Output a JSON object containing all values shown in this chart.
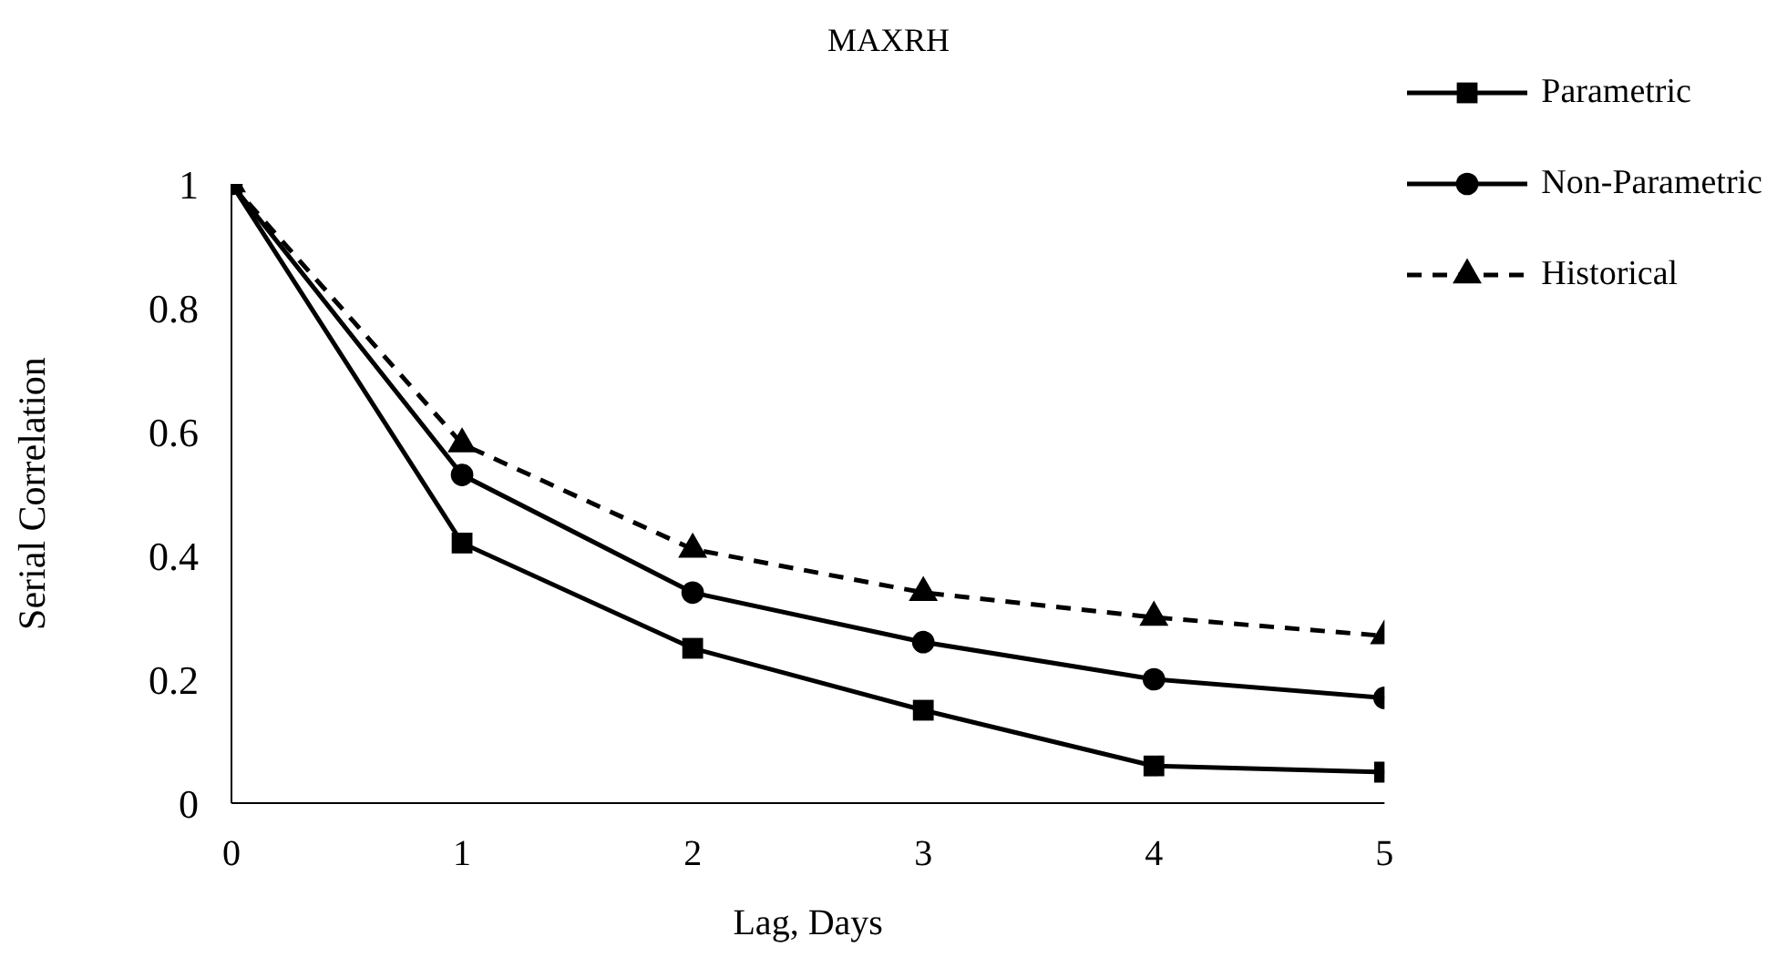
{
  "chart_data": {
    "type": "line",
    "title": "MAXRH",
    "xlabel": "Lag, Days",
    "ylabel": "Serial Correlation",
    "x": [
      0,
      1,
      2,
      3,
      4,
      5
    ],
    "series": [
      {
        "name": "Parametric",
        "color": "#000000",
        "marker": "square",
        "line_style": "solid",
        "values": [
          1,
          0.42,
          0.25,
          0.15,
          0.06,
          0.05
        ]
      },
      {
        "name": "Non-Parametric",
        "color": "#000000",
        "marker": "circle",
        "line_style": "solid",
        "values": [
          1,
          0.53,
          0.34,
          0.26,
          0.2,
          0.17
        ]
      },
      {
        "name": "Historical",
        "color": "#000000",
        "marker": "triangle",
        "line_style": "dashed",
        "values": [
          1,
          0.58,
          0.41,
          0.34,
          0.3,
          0.27
        ]
      }
    ],
    "xlim": [
      0,
      5
    ],
    "xticks": [
      0,
      1,
      2,
      3,
      4,
      5
    ],
    "ylim": [
      0,
      1
    ],
    "yticks": [
      0,
      0.2,
      0.4,
      0.6,
      0.8,
      1
    ],
    "grid": false,
    "legend": "top right"
  }
}
